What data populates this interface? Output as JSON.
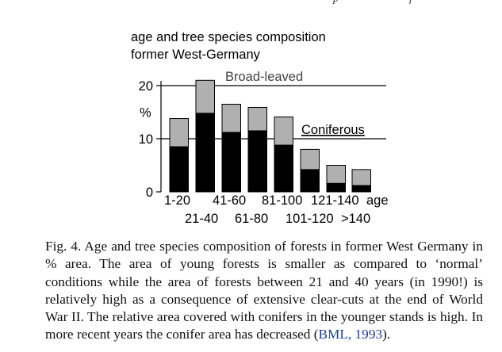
{
  "header_fragments": [
    "p",
    "f"
  ],
  "chart_data": {
    "type": "bar",
    "title_lines": [
      "age and tree species composition",
      "former West-Germany"
    ],
    "ylabel": "%",
    "xlabel": "age",
    "ylim": [
      0,
      20
    ],
    "yticks": [
      0,
      10,
      20
    ],
    "categories": [
      "1-20",
      "21-40",
      "41-60",
      "61-80",
      "81-100",
      "101-120",
      "121-140",
      ">140"
    ],
    "stacked": true,
    "series": [
      {
        "name": "Coniferous",
        "color": "#000000",
        "values": [
          8.5,
          14.8,
          11.2,
          11.5,
          8.8,
          4.2,
          1.6,
          1.2
        ]
      },
      {
        "name": "Broad-leaved",
        "color": "#b0b0b0",
        "values": [
          5.3,
          6.2,
          5.3,
          4.4,
          5.3,
          3.8,
          3.4,
          3.0
        ]
      }
    ],
    "series_labels": [
      "Broad-leaved",
      "Coniferous"
    ]
  },
  "caption": {
    "text": "Fig. 4. Age and tree species composition of forests in former West Germany in % area. The area of young forests is smaller as compared to ‘normal’ conditions while the area of forests between 21 and 40 years (in 1990!) is relatively high as a consequence of extensive clear-cuts at the end of World War II. The relative area covered with conifers in the younger stands is high. In more recent years the conifer area has decreased (",
    "ref": "BML, 1993",
    "end": ")."
  }
}
